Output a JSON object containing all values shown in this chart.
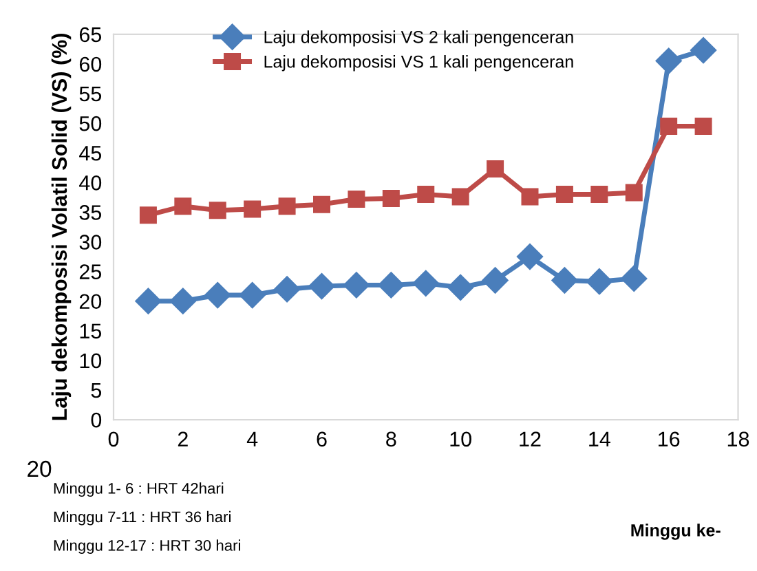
{
  "chart_data": {
    "type": "line",
    "xlabel": "Minggu ke-",
    "ylabel": "Laju dekomposisi Volatil Solid (VS) (%)",
    "x": [
      1,
      2,
      3,
      4,
      5,
      6,
      7,
      8,
      9,
      10,
      11,
      12,
      13,
      14,
      15,
      16,
      17
    ],
    "series": [
      {
        "name": "Laju dekomposisi VS 2 kali pengenceran",
        "color": "#4a7ebb",
        "marker": "diamond",
        "values": [
          20,
          20,
          21,
          21,
          22,
          22.5,
          22.7,
          22.7,
          23,
          22.3,
          23.5,
          27.5,
          23.5,
          23.3,
          23.8,
          60.5,
          62.3
        ]
      },
      {
        "name": "Laju dekomposisi VS 1 kali pengenceran",
        "color": "#be4b48",
        "marker": "square",
        "values": [
          34.5,
          36,
          35.3,
          35.5,
          36,
          36.3,
          37.2,
          37.3,
          38,
          37.6,
          42.3,
          37.6,
          38,
          38,
          38.3,
          49.5,
          49.5
        ]
      }
    ],
    "xlim": [
      0,
      18
    ],
    "xticks": [
      0,
      2,
      4,
      6,
      8,
      10,
      12,
      14,
      16,
      18
    ],
    "ylim": [
      0,
      65
    ],
    "yticks": [
      0,
      5,
      10,
      15,
      20,
      25,
      30,
      35,
      40,
      45,
      50,
      55,
      60,
      65
    ],
    "grid": false,
    "legend": "top",
    "line_style": "solid",
    "annotations": [
      "20",
      "Minggu 1- 6 : HRT 42hari",
      "Minggu 7-11 : HRT 36 hari",
      "Minggu 12-17 : HRT 30 hari"
    ]
  }
}
